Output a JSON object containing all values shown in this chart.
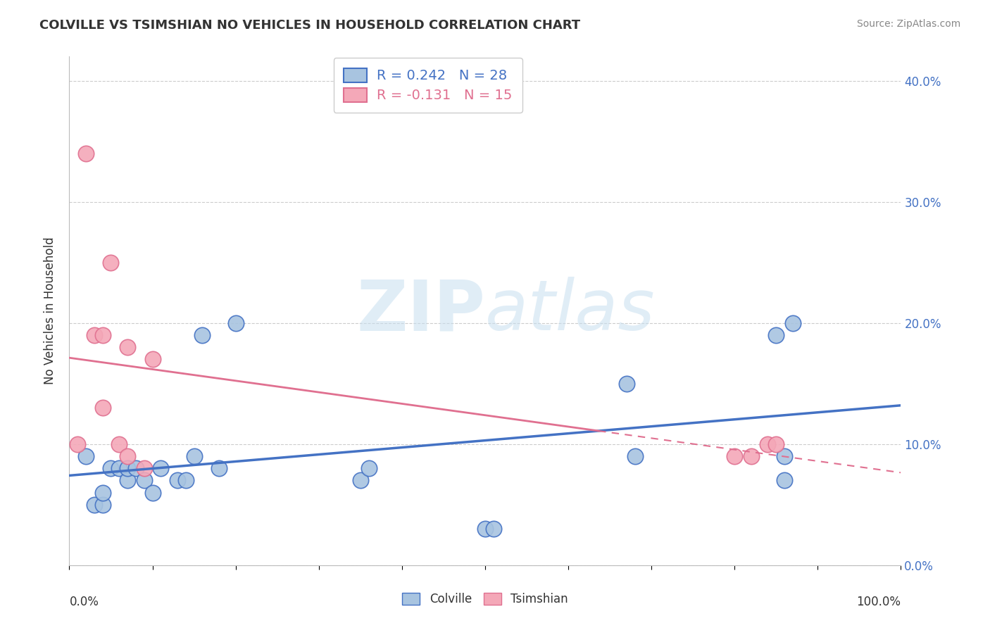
{
  "title": "COLVILLE VS TSIMSHIAN NO VEHICLES IN HOUSEHOLD CORRELATION CHART",
  "source_text": "Source: ZipAtlas.com",
  "ylabel": "No Vehicles in Household",
  "ytick_values": [
    0.0,
    0.1,
    0.2,
    0.3,
    0.4
  ],
  "xlim": [
    0.0,
    1.0
  ],
  "ylim": [
    0.0,
    0.42
  ],
  "colville_R": 0.242,
  "colville_N": 28,
  "tsimshian_R": -0.131,
  "tsimshian_N": 15,
  "colville_color": "#a8c4e0",
  "tsimshian_color": "#f4a8b8",
  "colville_line_color": "#4472c4",
  "tsimshian_line_color": "#e07090",
  "colville_x": [
    0.02,
    0.03,
    0.04,
    0.04,
    0.05,
    0.06,
    0.07,
    0.07,
    0.08,
    0.09,
    0.1,
    0.11,
    0.13,
    0.14,
    0.15,
    0.16,
    0.18,
    0.2,
    0.35,
    0.36,
    0.5,
    0.51,
    0.67,
    0.68,
    0.85,
    0.86,
    0.86,
    0.87
  ],
  "colville_y": [
    0.09,
    0.05,
    0.05,
    0.06,
    0.08,
    0.08,
    0.07,
    0.08,
    0.08,
    0.07,
    0.06,
    0.08,
    0.07,
    0.07,
    0.09,
    0.19,
    0.08,
    0.2,
    0.07,
    0.08,
    0.03,
    0.03,
    0.15,
    0.09,
    0.19,
    0.07,
    0.09,
    0.2
  ],
  "tsimshian_x": [
    0.01,
    0.02,
    0.03,
    0.04,
    0.04,
    0.05,
    0.06,
    0.07,
    0.07,
    0.09,
    0.1,
    0.8,
    0.82,
    0.84,
    0.85
  ],
  "tsimshian_y": [
    0.1,
    0.34,
    0.19,
    0.13,
    0.19,
    0.25,
    0.1,
    0.09,
    0.18,
    0.08,
    0.17,
    0.09,
    0.09,
    0.1,
    0.1
  ],
  "watermark_zip": "ZIP",
  "watermark_atlas": "atlas",
  "background_color": "#ffffff",
  "grid_color": "#cccccc"
}
